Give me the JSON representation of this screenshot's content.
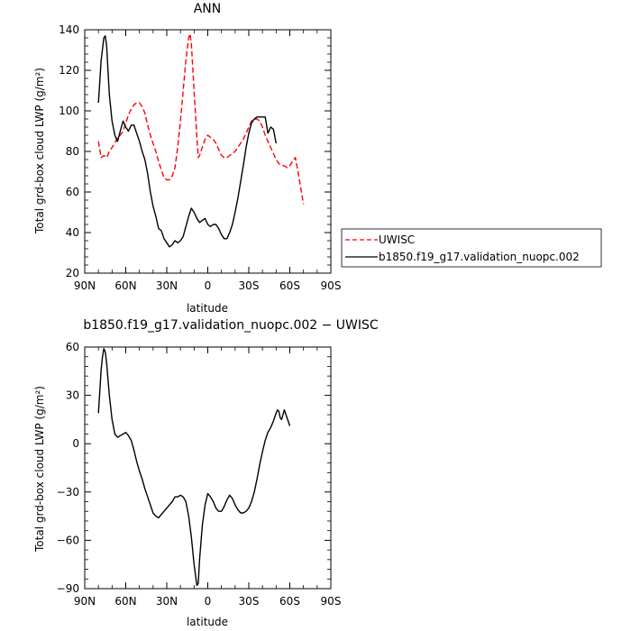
{
  "chart_data": [
    {
      "type": "line",
      "title": "ANN",
      "xlabel": "latitude",
      "ylabel": "Total grd-box cloud LWP (g/m²)",
      "xlim": [
        90,
        -90
      ],
      "ylim": [
        20,
        140
      ],
      "x_tick_labels": [
        "90N",
        "60N",
        "30N",
        "0",
        "30S",
        "60S",
        "90S"
      ],
      "x_tick_values": [
        90,
        60,
        30,
        0,
        -30,
        -60,
        -90
      ],
      "y_tick_values": [
        20,
        40,
        60,
        80,
        100,
        120,
        140
      ],
      "legend_placement": "right",
      "series": [
        {
          "name": "UWISC",
          "color": "#ff0000",
          "dash": "dashed",
          "points": [
            [
              80,
              85
            ],
            [
              78,
              77
            ],
            [
              76,
              78
            ],
            [
              74,
              77
            ],
            [
              72,
              80
            ],
            [
              70,
              82
            ],
            [
              68,
              84
            ],
            [
              66,
              87
            ],
            [
              64,
              88
            ],
            [
              62,
              90
            ],
            [
              60,
              94
            ],
            [
              58,
              98
            ],
            [
              56,
              101
            ],
            [
              54,
              103
            ],
            [
              52,
              104
            ],
            [
              50,
              104
            ],
            [
              48,
              102
            ],
            [
              46,
              99
            ],
            [
              44,
              93
            ],
            [
              42,
              88
            ],
            [
              40,
              84
            ],
            [
              38,
              80
            ],
            [
              36,
              75
            ],
            [
              34,
              71
            ],
            [
              32,
              67
            ],
            [
              30,
              66
            ],
            [
              28,
              66
            ],
            [
              26,
              68
            ],
            [
              24,
              72
            ],
            [
              22,
              82
            ],
            [
              20,
              95
            ],
            [
              18,
              110
            ],
            [
              16,
              125
            ],
            [
              14,
              136
            ],
            [
              13,
              138
            ],
            [
              12,
              133
            ],
            [
              10,
              110
            ],
            [
              8,
              87
            ],
            [
              7,
              77
            ],
            [
              6,
              78
            ],
            [
              4,
              82
            ],
            [
              2,
              86
            ],
            [
              0,
              88
            ],
            [
              -2,
              87
            ],
            [
              -4,
              86
            ],
            [
              -6,
              84
            ],
            [
              -8,
              81
            ],
            [
              -10,
              78
            ],
            [
              -12,
              77
            ],
            [
              -14,
              77
            ],
            [
              -16,
              78
            ],
            [
              -18,
              79
            ],
            [
              -20,
              80
            ],
            [
              -22,
              82
            ],
            [
              -24,
              84
            ],
            [
              -26,
              86
            ],
            [
              -28,
              89
            ],
            [
              -30,
              92
            ],
            [
              -32,
              95
            ],
            [
              -34,
              96
            ],
            [
              -36,
              96
            ],
            [
              -38,
              95
            ],
            [
              -40,
              92
            ],
            [
              -42,
              88
            ],
            [
              -44,
              85
            ],
            [
              -46,
              82
            ],
            [
              -48,
              79
            ],
            [
              -50,
              76
            ],
            [
              -52,
              74
            ],
            [
              -54,
              73
            ],
            [
              -56,
              73
            ],
            [
              -58,
              72
            ],
            [
              -60,
              73
            ],
            [
              -62,
              75
            ],
            [
              -64,
              77
            ],
            [
              -66,
              70
            ],
            [
              -68,
              62
            ],
            [
              -70,
              54
            ]
          ]
        },
        {
          "name": "b1850.f19_g17.validation_nuopc.002",
          "color": "#000000",
          "dash": "solid",
          "points": [
            [
              80,
              104
            ],
            [
              78,
              125
            ],
            [
              76,
              136
            ],
            [
              75,
              137
            ],
            [
              74,
              132
            ],
            [
              72,
              108
            ],
            [
              70,
              95
            ],
            [
              68,
              88
            ],
            [
              66,
              85
            ],
            [
              64,
              90
            ],
            [
              62,
              95
            ],
            [
              60,
              92
            ],
            [
              58,
              90
            ],
            [
              56,
              93
            ],
            [
              54,
              93
            ],
            [
              52,
              89
            ],
            [
              50,
              85
            ],
            [
              48,
              80
            ],
            [
              46,
              76
            ],
            [
              44,
              69
            ],
            [
              42,
              60
            ],
            [
              40,
              53
            ],
            [
              38,
              48
            ],
            [
              36,
              42
            ],
            [
              34,
              41
            ],
            [
              32,
              37
            ],
            [
              30,
              35
            ],
            [
              28,
              33
            ],
            [
              26,
              34
            ],
            [
              24,
              36
            ],
            [
              22,
              35
            ],
            [
              20,
              36
            ],
            [
              18,
              38
            ],
            [
              16,
              43
            ],
            [
              14,
              48
            ],
            [
              12,
              52
            ],
            [
              10,
              50
            ],
            [
              8,
              47
            ],
            [
              6,
              45
            ],
            [
              4,
              46
            ],
            [
              2,
              47
            ],
            [
              0,
              44
            ],
            [
              -2,
              43
            ],
            [
              -4,
              44
            ],
            [
              -6,
              44
            ],
            [
              -8,
              42
            ],
            [
              -10,
              39
            ],
            [
              -12,
              37
            ],
            [
              -14,
              37
            ],
            [
              -16,
              40
            ],
            [
              -18,
              44
            ],
            [
              -20,
              50
            ],
            [
              -22,
              57
            ],
            [
              -24,
              65
            ],
            [
              -26,
              73
            ],
            [
              -28,
              82
            ],
            [
              -30,
              89
            ],
            [
              -32,
              94
            ],
            [
              -34,
              96
            ],
            [
              -36,
              97
            ],
            [
              -38,
              97
            ],
            [
              -40,
              97
            ],
            [
              -42,
              97
            ],
            [
              -44,
              89
            ],
            [
              -46,
              92
            ],
            [
              -48,
              91
            ],
            [
              -50,
              84
            ]
          ]
        }
      ]
    },
    {
      "type": "line",
      "title": "b1850.f19_g17.validation_nuopc.002 − UWISC",
      "xlabel": "latitude",
      "ylabel": "Total grd-box cloud LWP (g/m²)",
      "xlim": [
        90,
        -90
      ],
      "ylim": [
        -90,
        60
      ],
      "x_tick_labels": [
        "90N",
        "60N",
        "30N",
        "0",
        "30S",
        "60S",
        "90S"
      ],
      "x_tick_values": [
        90,
        60,
        30,
        0,
        -30,
        -60,
        -90
      ],
      "y_tick_values": [
        -90,
        -60,
        -30,
        0,
        30,
        60
      ],
      "series": [
        {
          "color": "#000000",
          "dash": "solid",
          "points": [
            [
              80,
              19
            ],
            [
              78,
              46
            ],
            [
              77,
              54
            ],
            [
              76,
              59
            ],
            [
              75,
              57
            ],
            [
              74,
              50
            ],
            [
              72,
              30
            ],
            [
              70,
              15
            ],
            [
              68,
              6
            ],
            [
              66,
              4
            ],
            [
              64,
              5
            ],
            [
              62,
              6
            ],
            [
              60,
              7
            ],
            [
              58,
              5
            ],
            [
              56,
              2
            ],
            [
              54,
              -4
            ],
            [
              52,
              -11
            ],
            [
              50,
              -17
            ],
            [
              48,
              -22
            ],
            [
              46,
              -28
            ],
            [
              44,
              -33
            ],
            [
              42,
              -38
            ],
            [
              40,
              -43
            ],
            [
              38,
              -45
            ],
            [
              36,
              -46
            ],
            [
              34,
              -44
            ],
            [
              32,
              -42
            ],
            [
              30,
              -40
            ],
            [
              28,
              -38
            ],
            [
              26,
              -36
            ],
            [
              24,
              -33
            ],
            [
              22,
              -33
            ],
            [
              20,
              -32
            ],
            [
              18,
              -33
            ],
            [
              16,
              -36
            ],
            [
              14,
              -45
            ],
            [
              12,
              -58
            ],
            [
              10,
              -75
            ],
            [
              8,
              -88
            ],
            [
              7,
              -87
            ],
            [
              6,
              -72
            ],
            [
              4,
              -51
            ],
            [
              2,
              -38
            ],
            [
              0,
              -31
            ],
            [
              -2,
              -33
            ],
            [
              -4,
              -36
            ],
            [
              -6,
              -40
            ],
            [
              -8,
              -42
            ],
            [
              -10,
              -42
            ],
            [
              -12,
              -39
            ],
            [
              -14,
              -35
            ],
            [
              -16,
              -32
            ],
            [
              -18,
              -34
            ],
            [
              -20,
              -38
            ],
            [
              -22,
              -41
            ],
            [
              -24,
              -43
            ],
            [
              -26,
              -43
            ],
            [
              -28,
              -42
            ],
            [
              -30,
              -40
            ],
            [
              -32,
              -36
            ],
            [
              -34,
              -30
            ],
            [
              -36,
              -22
            ],
            [
              -38,
              -13
            ],
            [
              -40,
              -5
            ],
            [
              -42,
              2
            ],
            [
              -44,
              7
            ],
            [
              -46,
              10
            ],
            [
              -48,
              14
            ],
            [
              -50,
              19
            ],
            [
              -51,
              21
            ],
            [
              -52,
              20
            ],
            [
              -53,
              16
            ],
            [
              -54,
              15
            ],
            [
              -56,
              21
            ],
            [
              -58,
              16
            ],
            [
              -60,
              11
            ]
          ]
        }
      ]
    }
  ]
}
